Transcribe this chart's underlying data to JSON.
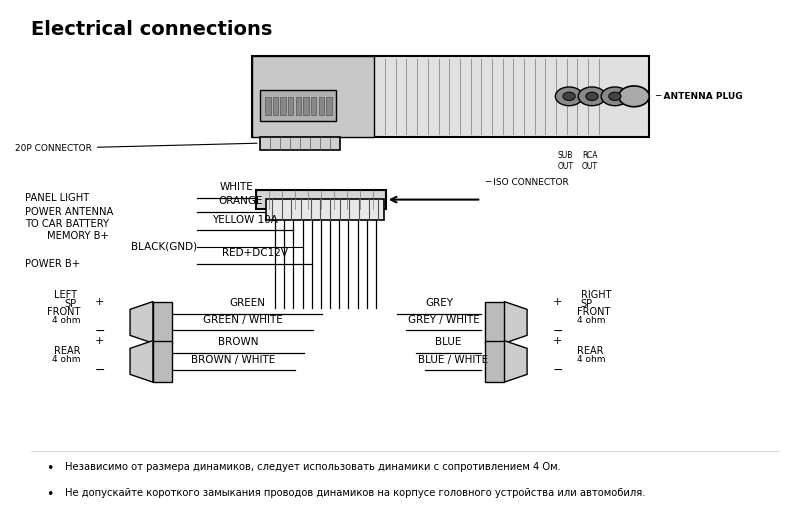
{
  "title": "Electrical connections",
  "bg_color": "#ffffff",
  "text_color": "#000000",
  "title_fontsize": 14,
  "label_fontsize": 7.5,
  "note1": "Независимо от размера динамиков, следует использовать динамики с сопротивлением 4 Ом.",
  "note2": "Не допускайте короткого замыкания проводов динамиков на корпусе головного устройства или автомобиля."
}
